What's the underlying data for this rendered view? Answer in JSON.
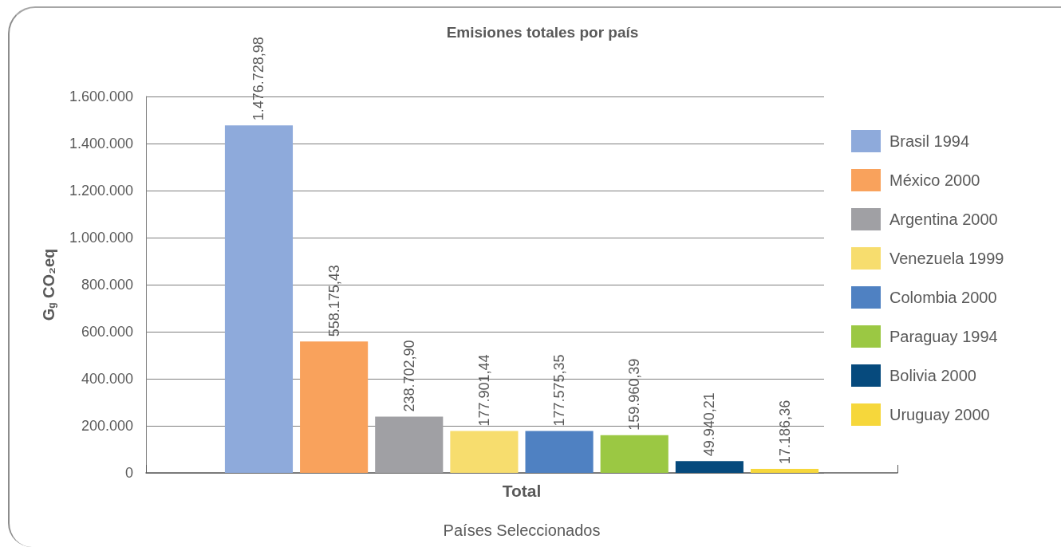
{
  "chart_data": {
    "type": "bar",
    "title": "Emisiones totales por país",
    "xlabel": "Países Seleccionados",
    "ylabel": "G$_{g}$ CO₂eq",
    "categories": [
      "Total"
    ],
    "series": [
      {
        "name": "Brasil 1994",
        "color": "#8eaadb",
        "values": [
          1476728.98
        ],
        "value_labels": [
          "1.476.728,98"
        ]
      },
      {
        "name": "México 2000",
        "color": "#f9a25c",
        "values": [
          558175.43
        ],
        "value_labels": [
          "558.175,43"
        ]
      },
      {
        "name": "Argentina 2000",
        "color": "#a0a0a4",
        "values": [
          238702.9
        ],
        "value_labels": [
          "238.702,90"
        ]
      },
      {
        "name": "Venezuela 1999",
        "color": "#f7dd6e",
        "values": [
          177901.44
        ],
        "value_labels": [
          "177.901,44"
        ]
      },
      {
        "name": "Colombia 2000",
        "color": "#4f81c2",
        "values": [
          177575.35
        ],
        "value_labels": [
          "177.575,35"
        ]
      },
      {
        "name": "Paraguay 1994",
        "color": "#9bc843",
        "values": [
          159960.39
        ],
        "value_labels": [
          "159.960,39"
        ]
      },
      {
        "name": "Bolivia 2000",
        "color": "#064a7d",
        "values": [
          49940.21
        ],
        "value_labels": [
          "49.940,21"
        ]
      },
      {
        "name": "Uruguay 2000",
        "color": "#f6d73b",
        "values": [
          17186.36
        ],
        "value_labels": [
          "17.186,36"
        ]
      }
    ],
    "ylim": [
      0,
      1600000
    ],
    "yticks": [
      0,
      {
        "value": 200000,
        "label": "200.000"
      },
      {
        "value": 400000,
        "label": "400.000"
      },
      {
        "value": 600000,
        "label": "600.000"
      },
      {
        "value": 800000,
        "label": "800.000"
      },
      {
        "value": 1000000,
        "label": "1.000.000"
      },
      {
        "value": 1200000,
        "label": "1.200.000"
      },
      {
        "value": 1400000,
        "label": "1.400.000"
      },
      {
        "value": 1600000,
        "label": "1.600.000"
      }
    ],
    "grid": true,
    "legend": "right"
  }
}
